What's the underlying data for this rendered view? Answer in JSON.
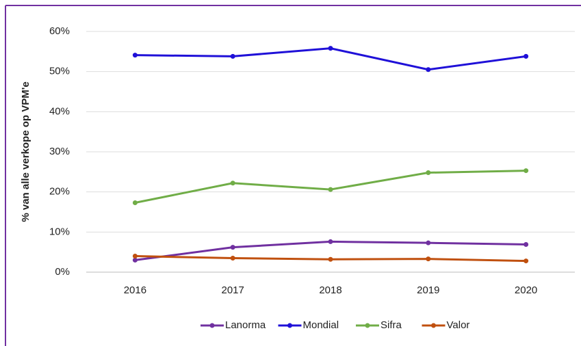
{
  "chart_data": {
    "type": "line",
    "y_label": "% van alle verkope op VPM'e",
    "categories": [
      "2016",
      "2017",
      "2018",
      "2019",
      "2020"
    ],
    "series": [
      {
        "name": "Lanorma",
        "color": "#7030a0",
        "values": [
          3.0,
          6.2,
          7.6,
          7.3,
          6.9
        ]
      },
      {
        "name": "Mondial",
        "color": "#1f10d8",
        "values": [
          54.1,
          53.8,
          55.8,
          50.5,
          53.8
        ]
      },
      {
        "name": "Sifra",
        "color": "#70ad47",
        "values": [
          17.3,
          22.2,
          20.6,
          24.8,
          25.3
        ]
      },
      {
        "name": "Valor",
        "color": "#c0500f",
        "values": [
          4.0,
          3.5,
          3.2,
          3.3,
          2.8
        ]
      }
    ],
    "ylim": [
      0,
      60
    ],
    "yticks": [
      {
        "value": 0,
        "label": "0%"
      },
      {
        "value": 10,
        "label": "10%"
      },
      {
        "value": 20,
        "label": "20%"
      },
      {
        "value": 30,
        "label": "30%"
      },
      {
        "value": 40,
        "label": "40%"
      },
      {
        "value": 50,
        "label": "50%"
      },
      {
        "value": 60,
        "label": "60%"
      }
    ],
    "grid": true,
    "legend": "bottom"
  }
}
